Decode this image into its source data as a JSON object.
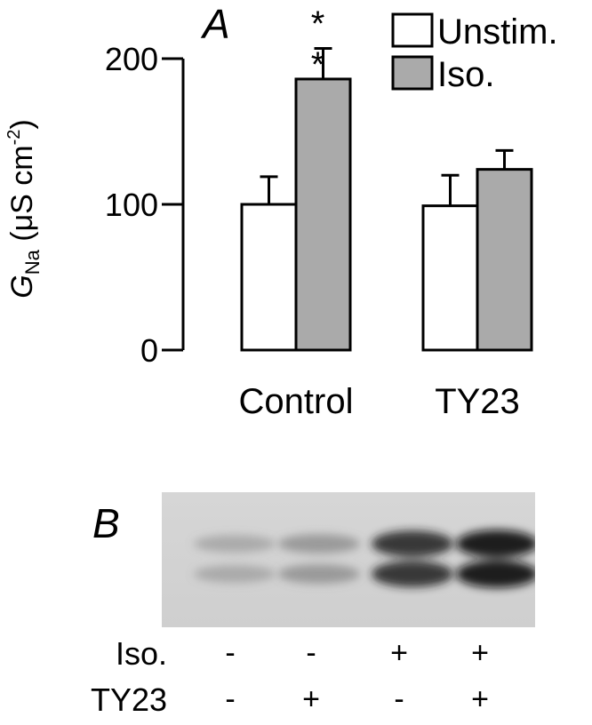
{
  "panel_a": {
    "label": "A",
    "significance": "*\n*"
  },
  "panel_b": {
    "label": "B",
    "rows": [
      {
        "label": "Iso.",
        "signs": [
          "-",
          "-",
          "+",
          "+"
        ]
      },
      {
        "label": "TY23",
        "signs": [
          "-",
          "+",
          "-",
          "+"
        ]
      }
    ],
    "band_intensity": [
      0.22,
      0.35,
      0.85,
      0.95
    ]
  },
  "chart_data": {
    "type": "bar",
    "categories": [
      "Control",
      "TY23"
    ],
    "series": [
      {
        "name": "Unstim.",
        "values": [
          100,
          99
        ],
        "errors": [
          19,
          21
        ],
        "color": "#ffffff"
      },
      {
        "name": "Iso.",
        "values": [
          186,
          124
        ],
        "errors": [
          21,
          13
        ],
        "color": "#aaaaaa"
      }
    ],
    "ylabel_main": "G",
    "ylabel_sub": "Na",
    "ylabel_unit": " (μS cm",
    "ylabel_sup": "-2",
    "ylabel_close": ")",
    "yticks": [
      "0",
      "100",
      "200"
    ],
    "ylim": [
      0,
      200
    ],
    "legend_position": "top-right"
  }
}
